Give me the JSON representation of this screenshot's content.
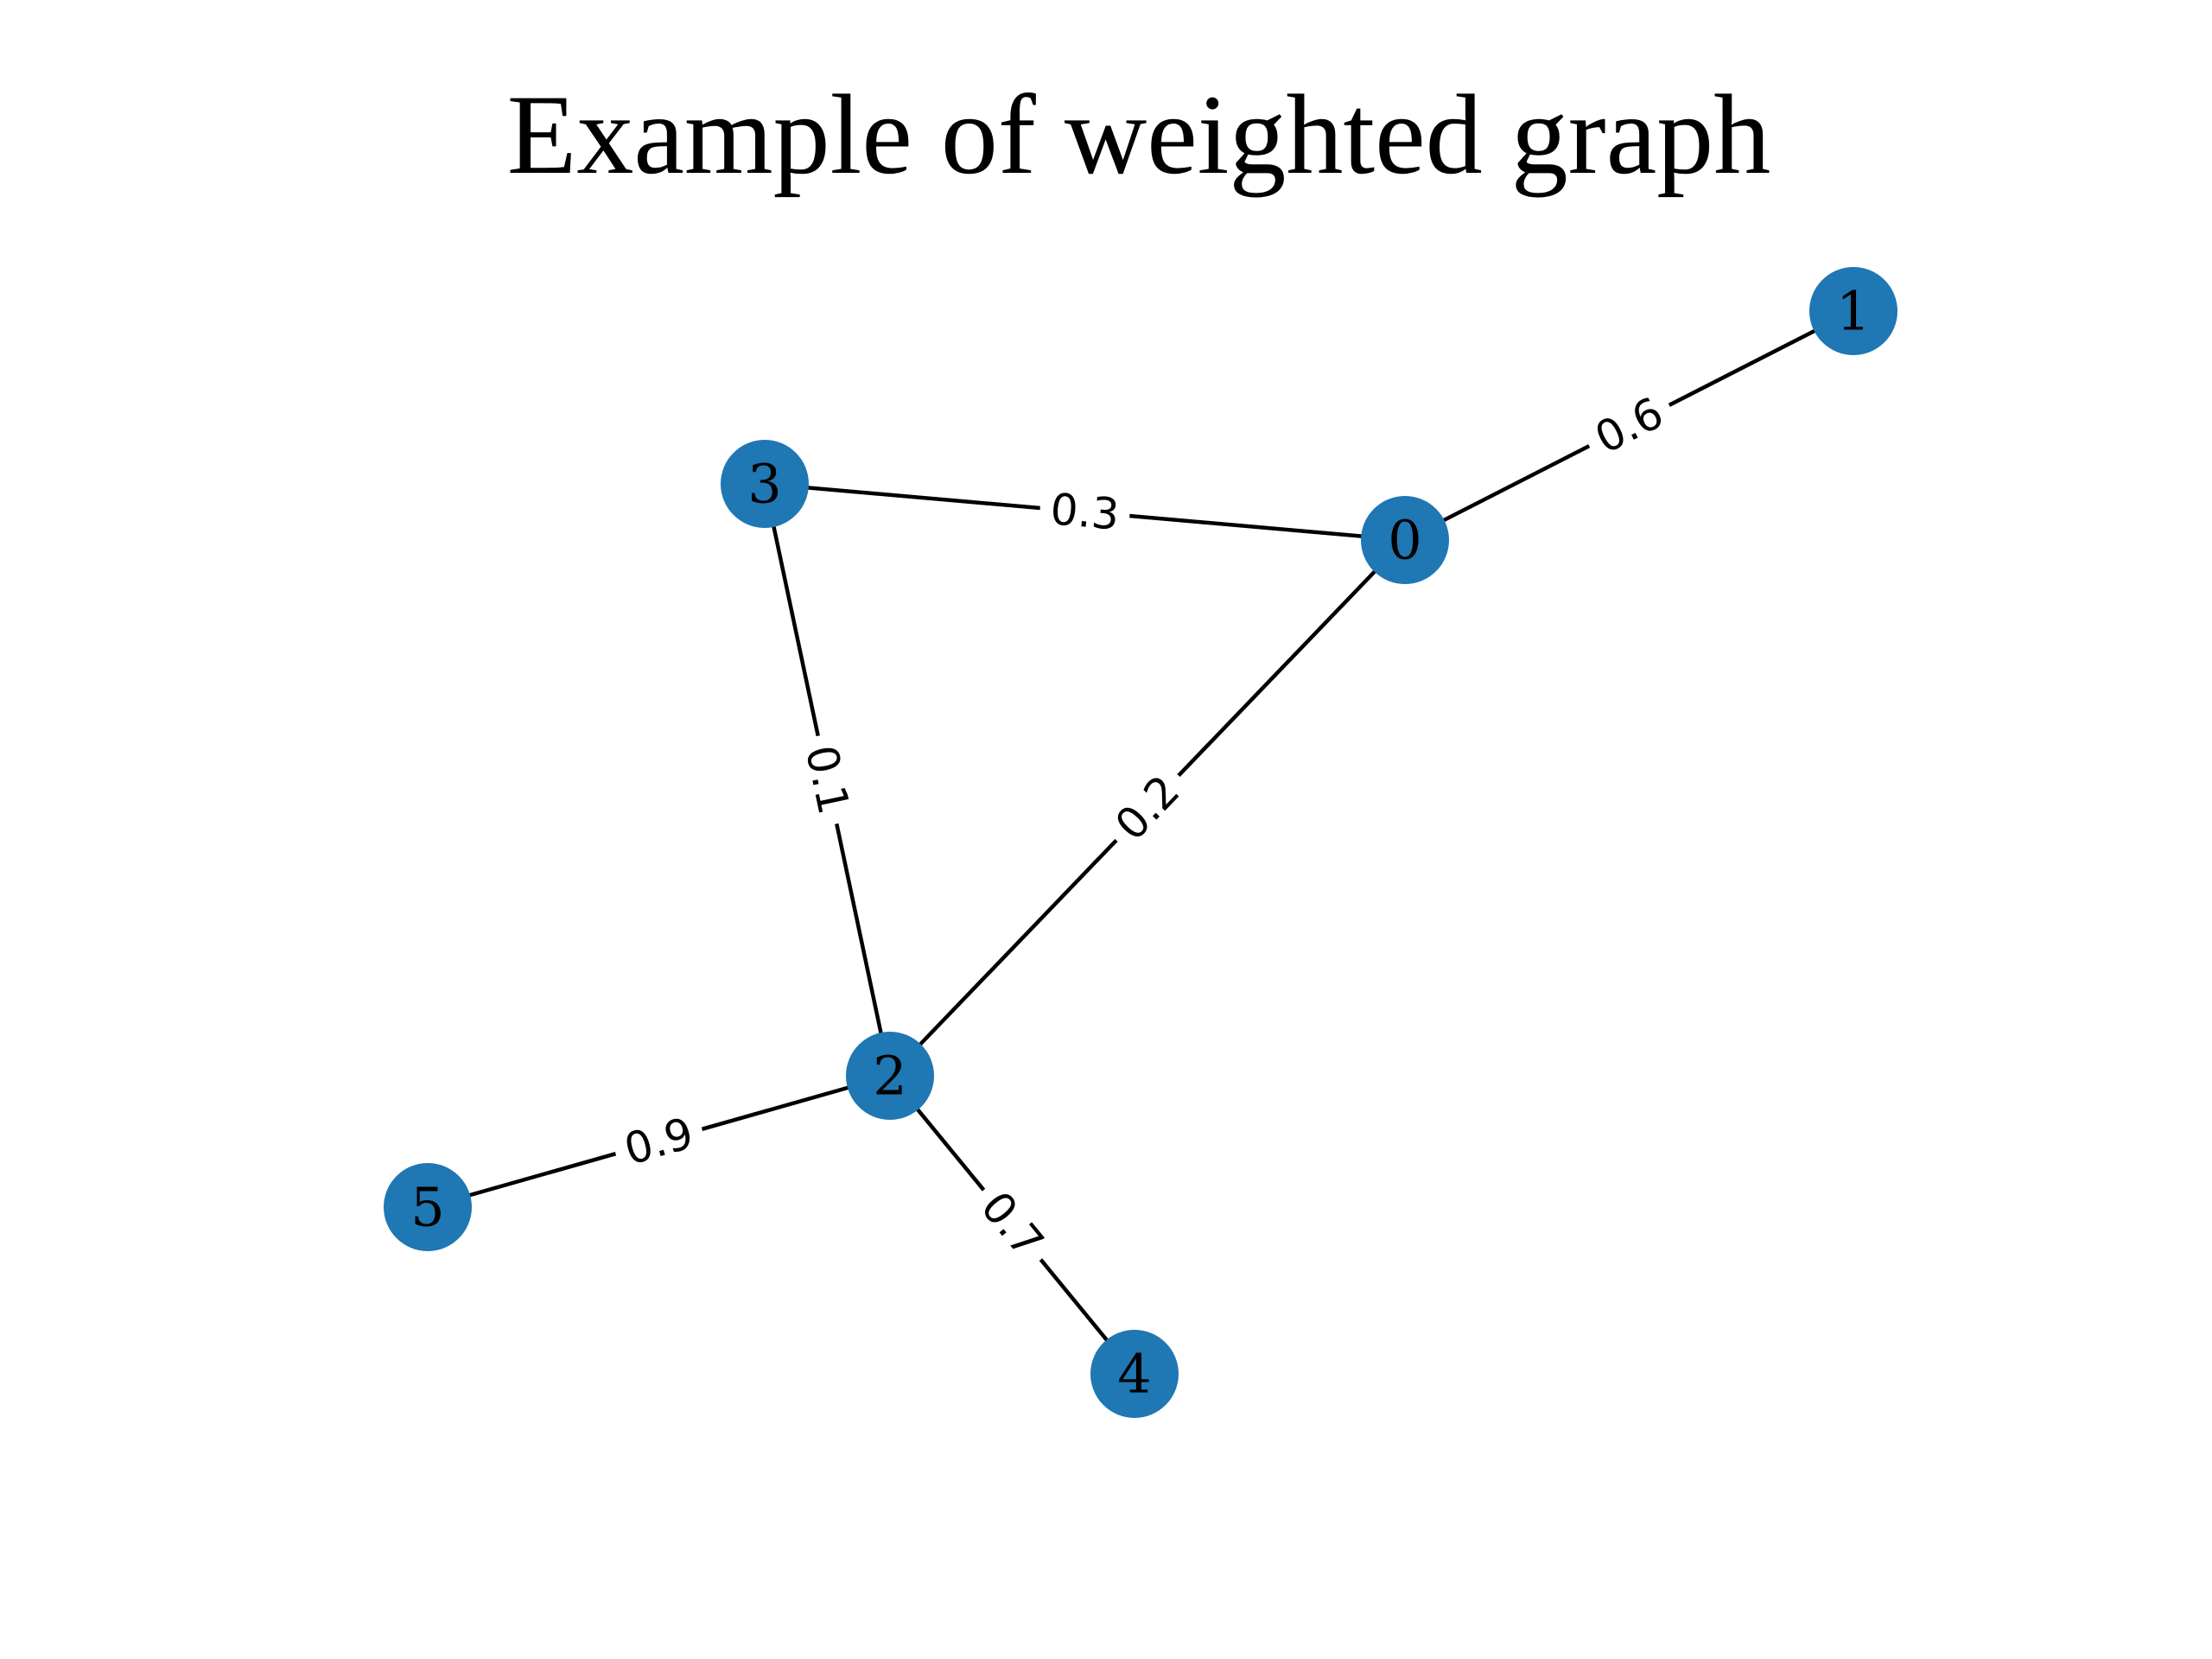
{
  "title": "Example of weighted graph",
  "colors": {
    "node_fill": "#1f77b4",
    "edge": "#000000",
    "background": "#ffffff"
  },
  "nodes": [
    {
      "id": "0",
      "label": "0"
    },
    {
      "id": "1",
      "label": "1"
    },
    {
      "id": "2",
      "label": "2"
    },
    {
      "id": "3",
      "label": "3"
    },
    {
      "id": "4",
      "label": "4"
    },
    {
      "id": "5",
      "label": "5"
    }
  ],
  "edges": [
    {
      "source": "0",
      "target": "1",
      "weight": "0.6"
    },
    {
      "source": "0",
      "target": "3",
      "weight": "0.3"
    },
    {
      "source": "0",
      "target": "2",
      "weight": "0.2"
    },
    {
      "source": "3",
      "target": "2",
      "weight": "0.1"
    },
    {
      "source": "2",
      "target": "5",
      "weight": "0.9"
    },
    {
      "source": "2",
      "target": "4",
      "weight": "0.7"
    }
  ]
}
